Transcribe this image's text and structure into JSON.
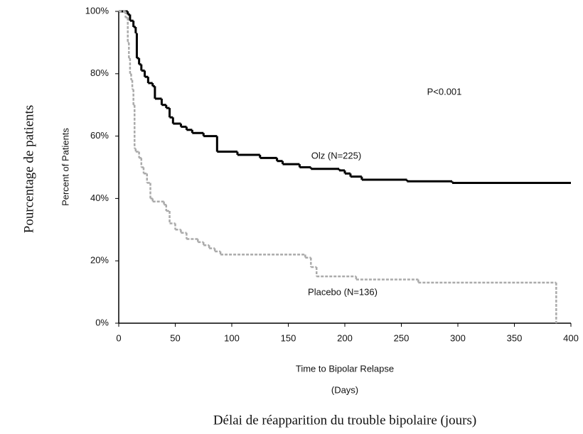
{
  "chart_data": {
    "type": "step",
    "ylabel_translation": "Pourcentage de patients",
    "ylabel": "Percent of Patients",
    "xlabel": "Time to Bipolar Relapse",
    "xlabel_unit": "(Days)",
    "xlabel_translation": "Délai de réapparition du trouble bipolaire (jours)",
    "annotations": [
      "P<0.001",
      "Olz (N=225)",
      "Placebo (N=136)"
    ],
    "xlim": [
      0,
      400
    ],
    "xticks": [
      0,
      50,
      100,
      150,
      200,
      250,
      300,
      350,
      400
    ],
    "ylim": [
      0,
      100
    ],
    "yticks": [
      {
        "value": 0,
        "label": "0%"
      },
      {
        "value": 20,
        "label": "20%"
      },
      {
        "value": 40,
        "label": "40%"
      },
      {
        "value": 60,
        "label": "60%"
      },
      {
        "value": 80,
        "label": "80%"
      },
      {
        "value": 100,
        "label": "100%"
      }
    ],
    "series": [
      {
        "name": "Olz (N=225)",
        "color": "#000000",
        "x": [
          0,
          8,
          10,
          13,
          15,
          16,
          18,
          20,
          23,
          26,
          30,
          32,
          38,
          42,
          45,
          48,
          55,
          60,
          65,
          75,
          87,
          105,
          125,
          140,
          145,
          160,
          170,
          195,
          200,
          205,
          215,
          255,
          295,
          400
        ],
        "values": [
          100,
          99,
          97,
          95,
          93,
          85,
          83,
          81,
          79,
          77,
          76,
          72,
          70,
          69,
          66,
          64,
          63,
          62,
          61,
          60,
          55,
          54,
          53,
          52,
          51,
          50,
          49.5,
          49,
          48,
          47,
          46,
          45.5,
          45,
          45
        ]
      },
      {
        "name": "Placebo (N=136)",
        "color": "#aaaaaa",
        "x": [
          0,
          6,
          8,
          9,
          10,
          11,
          12,
          13,
          14,
          15,
          18,
          20,
          22,
          25,
          28,
          30,
          40,
          42,
          45,
          50,
          55,
          60,
          70,
          75,
          80,
          85,
          90,
          165,
          170,
          175,
          210,
          265,
          387
        ],
        "values": [
          100,
          98,
          90,
          85,
          80,
          78,
          75,
          70,
          56,
          55,
          53,
          50,
          48,
          45,
          40,
          39,
          38,
          36,
          32,
          30,
          29,
          27,
          26,
          25,
          24,
          23,
          22,
          21,
          18,
          15,
          14,
          13,
          0
        ]
      }
    ]
  }
}
